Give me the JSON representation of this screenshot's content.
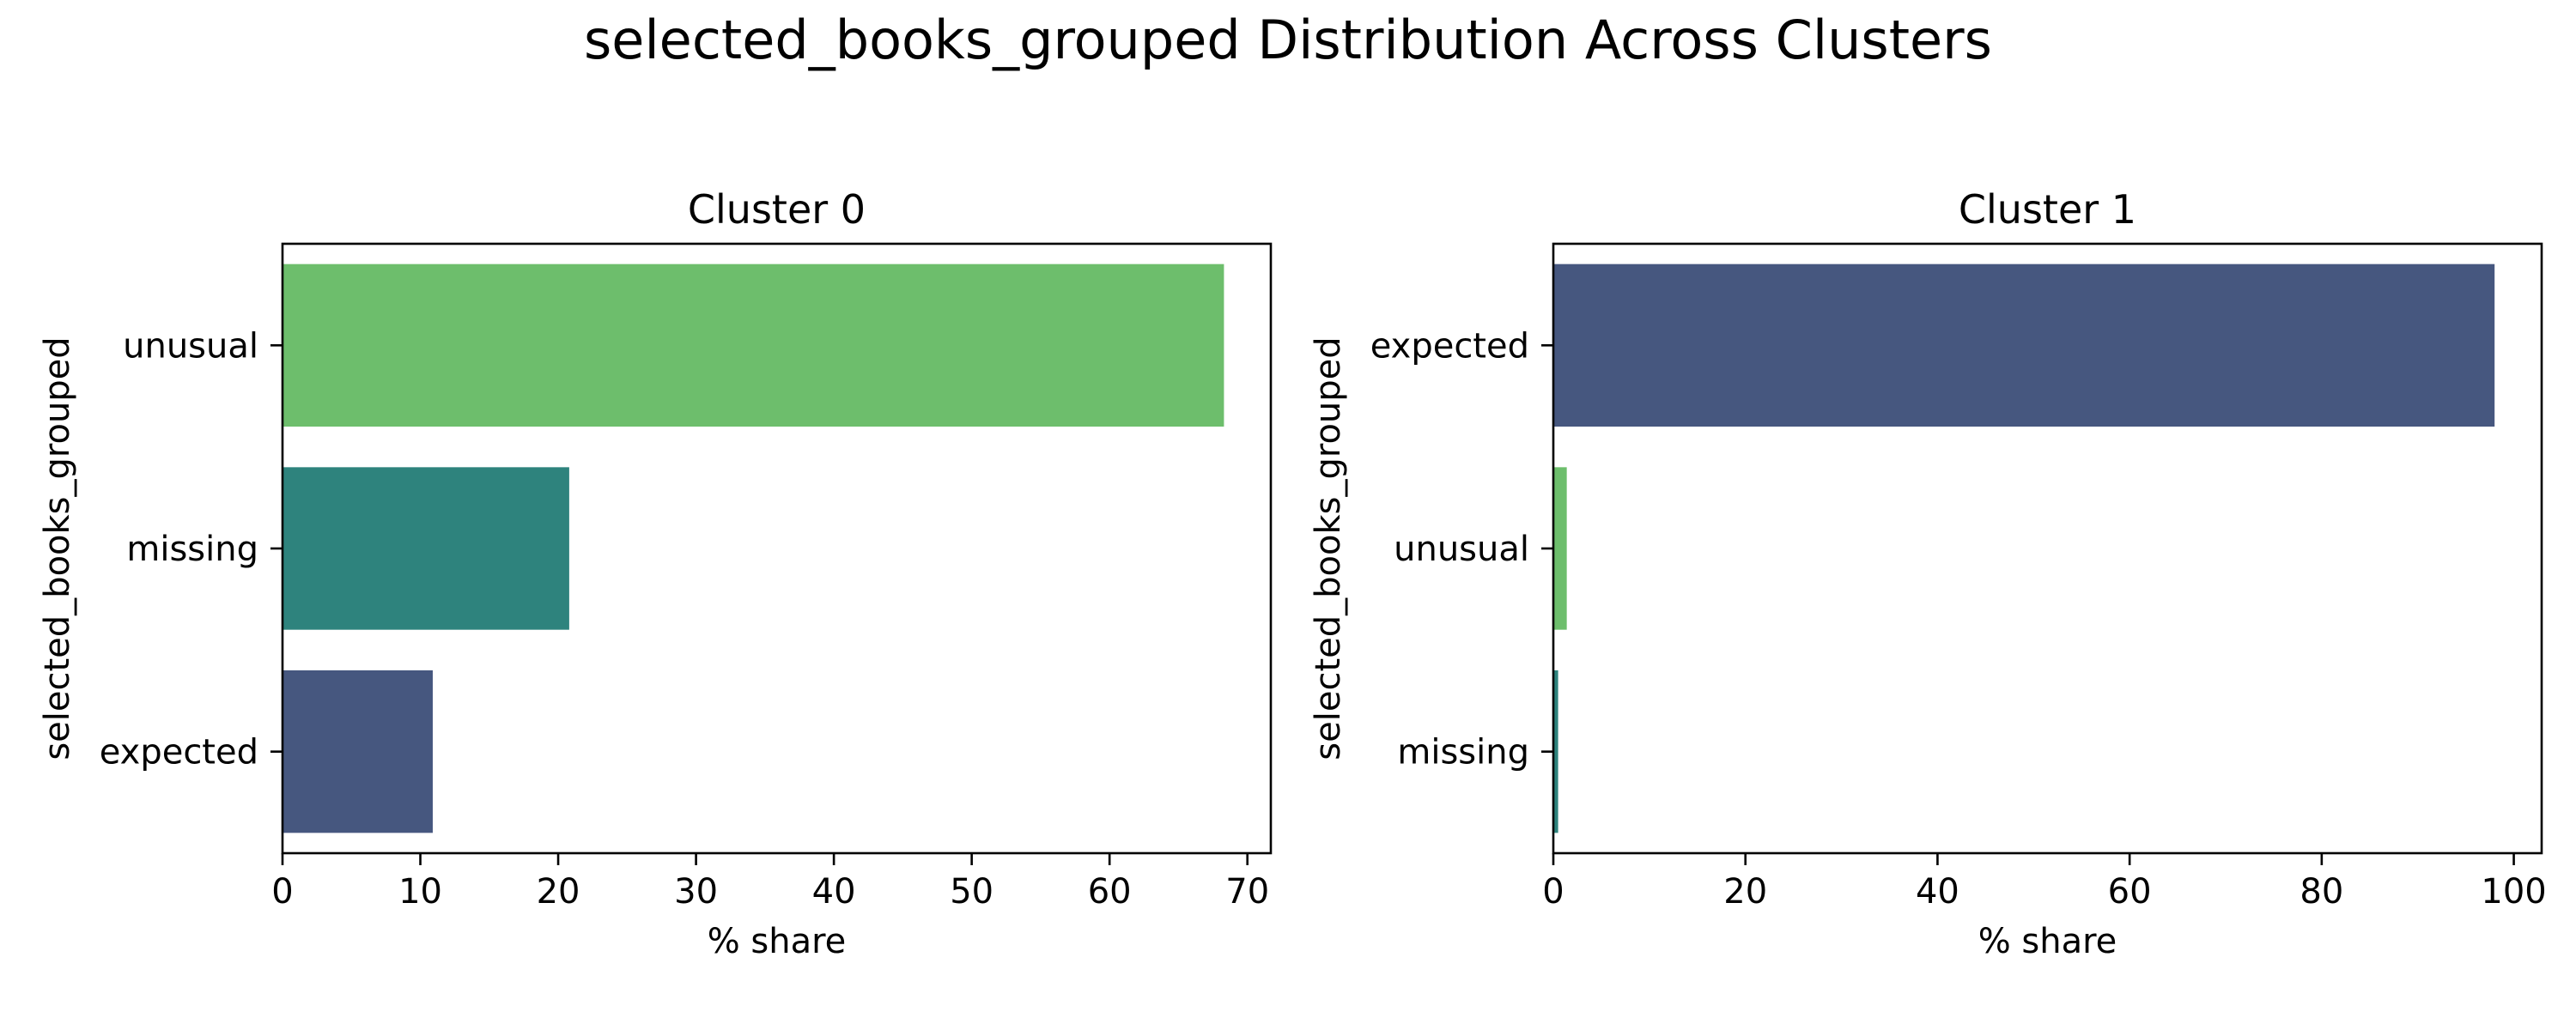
{
  "figure": {
    "suptitle": "selected_books_grouped Distribution Across Clusters"
  },
  "chart_data": [
    {
      "type": "bar",
      "orientation": "horizontal",
      "title": "Cluster 0",
      "xlabel": "% share",
      "ylabel": "selected_books_grouped",
      "categories": [
        "unusual",
        "missing",
        "expected"
      ],
      "values": [
        68.3,
        20.8,
        10.9
      ],
      "colors": [
        "#6dbe6c",
        "#2e837d",
        "#46577f"
      ],
      "xlim": [
        0,
        71.7
      ],
      "xticks": [
        0,
        10,
        20,
        30,
        40,
        50,
        60,
        70
      ],
      "grid": false
    },
    {
      "type": "bar",
      "orientation": "horizontal",
      "title": "Cluster 1",
      "xlabel": "% share",
      "ylabel": "selected_books_grouped",
      "categories": [
        "expected",
        "unusual",
        "missing"
      ],
      "values": [
        98.0,
        1.4,
        0.5
      ],
      "colors": [
        "#46577f",
        "#6dbe6c",
        "#2e837d"
      ],
      "xlim": [
        0,
        102.9
      ],
      "xticks": [
        0,
        20,
        40,
        60,
        80,
        100
      ],
      "grid": false
    }
  ]
}
